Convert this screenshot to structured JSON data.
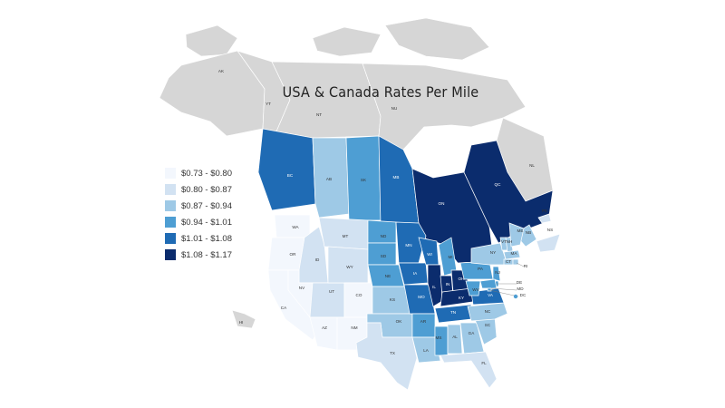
{
  "title": "USA & Canada Rates Per Mile",
  "legend": [
    {
      "label": "$0.73 - $0.80",
      "color": "#f3f7fd"
    },
    {
      "label": "$0.80 - $0.87",
      "color": "#d2e2f2"
    },
    {
      "label": "$0.87 - $0.94",
      "color": "#9ec9e6"
    },
    {
      "label": "$0.94 - $1.01",
      "color": "#4e9ed3"
    },
    {
      "label": "$1.01 - $1.08",
      "color": "#1f6bb4"
    },
    {
      "label": "$1.08 - $1.17",
      "color": "#0b2c6d"
    }
  ],
  "regions": [
    {
      "code": "AK",
      "bin": null
    },
    {
      "code": "YT",
      "bin": null
    },
    {
      "code": "NT",
      "bin": null
    },
    {
      "code": "NU",
      "bin": null
    },
    {
      "code": "NL",
      "bin": null
    },
    {
      "code": "HI",
      "bin": null
    },
    {
      "code": "BC",
      "bin": 4
    },
    {
      "code": "AB",
      "bin": 2
    },
    {
      "code": "SK",
      "bin": 3
    },
    {
      "code": "MB",
      "bin": 4
    },
    {
      "code": "ON",
      "bin": 5
    },
    {
      "code": "QC",
      "bin": 5
    },
    {
      "code": "NB",
      "bin": 2
    },
    {
      "code": "NS",
      "bin": 1
    },
    {
      "code": "PE",
      "bin": 1
    },
    {
      "code": "WA",
      "bin": 0
    },
    {
      "code": "OR",
      "bin": 0
    },
    {
      "code": "CA",
      "bin": 0
    },
    {
      "code": "ID",
      "bin": 1
    },
    {
      "code": "NV",
      "bin": 0
    },
    {
      "code": "UT",
      "bin": 1
    },
    {
      "code": "AZ",
      "bin": 0
    },
    {
      "code": "MT",
      "bin": 1
    },
    {
      "code": "WY",
      "bin": 1
    },
    {
      "code": "CO",
      "bin": 0
    },
    {
      "code": "NM",
      "bin": 0
    },
    {
      "code": "ND",
      "bin": 3
    },
    {
      "code": "SD",
      "bin": 3
    },
    {
      "code": "NE",
      "bin": 3
    },
    {
      "code": "KS",
      "bin": 2
    },
    {
      "code": "OK",
      "bin": 2
    },
    {
      "code": "TX",
      "bin": 1
    },
    {
      "code": "MN",
      "bin": 4
    },
    {
      "code": "IA",
      "bin": 4
    },
    {
      "code": "MO",
      "bin": 4
    },
    {
      "code": "AR",
      "bin": 3
    },
    {
      "code": "LA",
      "bin": 2
    },
    {
      "code": "WI",
      "bin": 4
    },
    {
      "code": "IL",
      "bin": 5
    },
    {
      "code": "MI",
      "bin": 3
    },
    {
      "code": "IN",
      "bin": 5
    },
    {
      "code": "OH",
      "bin": 5
    },
    {
      "code": "KY",
      "bin": 5
    },
    {
      "code": "TN",
      "bin": 4
    },
    {
      "code": "MS",
      "bin": 3
    },
    {
      "code": "AL",
      "bin": 2
    },
    {
      "code": "GA",
      "bin": 2
    },
    {
      "code": "FL",
      "bin": 1
    },
    {
      "code": "SC",
      "bin": 2
    },
    {
      "code": "NC",
      "bin": 2
    },
    {
      "code": "VA",
      "bin": 4
    },
    {
      "code": "WV",
      "bin": 3
    },
    {
      "code": "PA",
      "bin": 3
    },
    {
      "code": "NY",
      "bin": 2
    },
    {
      "code": "VT",
      "bin": 2
    },
    {
      "code": "NH",
      "bin": 2
    },
    {
      "code": "ME",
      "bin": 2
    },
    {
      "code": "MA",
      "bin": 2
    },
    {
      "code": "CT",
      "bin": 2
    },
    {
      "code": "RI",
      "bin": 2
    },
    {
      "code": "NJ",
      "bin": 3
    },
    {
      "code": "DE",
      "bin": 3
    },
    {
      "code": "MD",
      "bin": 3
    },
    {
      "code": "DC",
      "bin": 3
    }
  ]
}
